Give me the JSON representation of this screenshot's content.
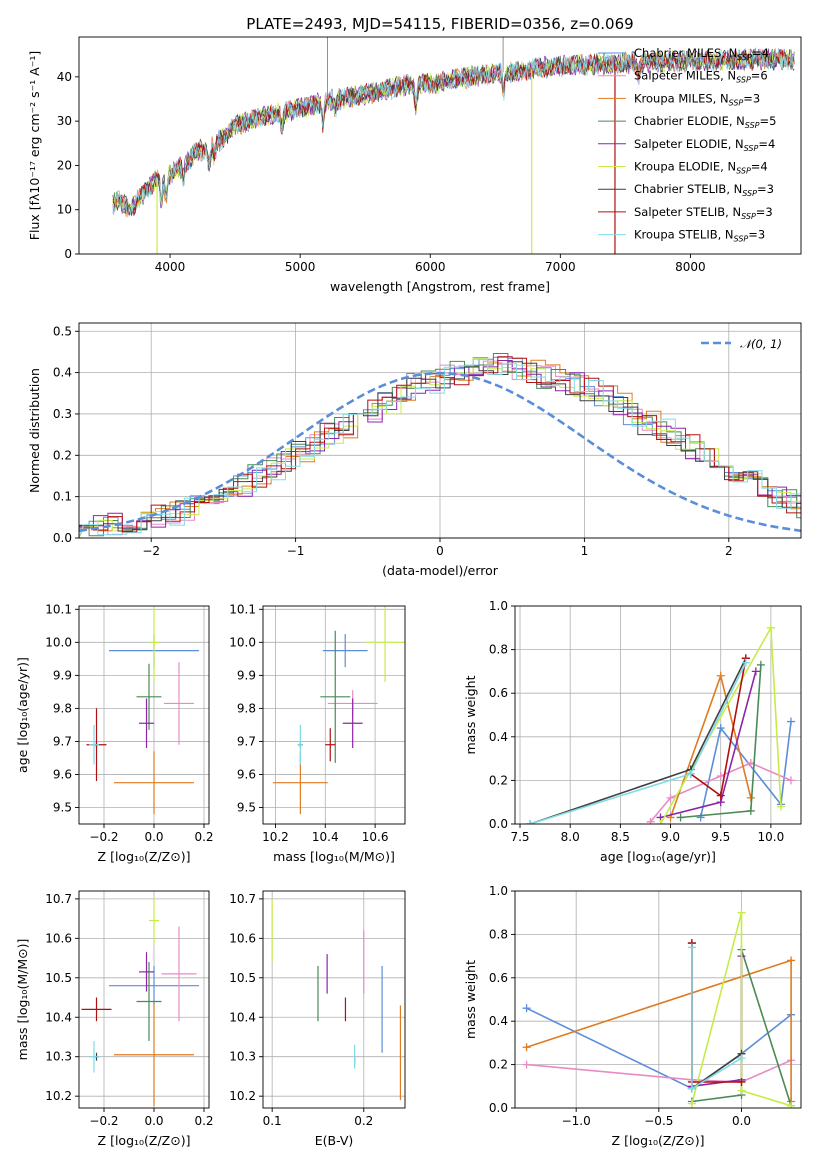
{
  "colors": {
    "Chabrier MILES": "#5b8ed8",
    "Salpeter MILES": "#e88bc4",
    "Kroupa MILES": "#e07b20",
    "Chabrier ELODIE": "#4a8a55",
    "Salpeter ELODIE": "#8e24aa",
    "Kroupa ELODIE": "#c6ec4a",
    "Chabrier STELIB": "#404040",
    "Salpeter STELIB": "#b01010",
    "Kroupa STELIB": "#80dbe8",
    "gaussian": "#5b8ed8"
  },
  "chart_data": [
    {
      "id": "spectrum",
      "type": "line",
      "title": "PLATE=2493, MJD=54115, FIBERID=0356, z=0.069",
      "xlabel": "wavelength [Angstrom, rest frame]",
      "ylabel": "Flux [fλ10⁻¹⁷ erg cm⁻² s⁻¹ A⁻¹]",
      "xlim": [
        3300,
        8850
      ],
      "ylim": [
        0,
        49
      ],
      "xticks": [
        4000,
        5000,
        6000,
        7000,
        8000
      ],
      "yticks": [
        0,
        10,
        20,
        30,
        40
      ],
      "grid": false,
      "legend_position": "right",
      "continuum": [
        [
          3550,
          11
        ],
        [
          3600,
          12
        ],
        [
          3700,
          10
        ],
        [
          3800,
          14
        ],
        [
          3900,
          17
        ],
        [
          4000,
          18
        ],
        [
          4100,
          20
        ],
        [
          4200,
          23
        ],
        [
          4300,
          24
        ],
        [
          4400,
          26
        ],
        [
          4500,
          29
        ],
        [
          4600,
          30
        ],
        [
          4700,
          31
        ],
        [
          4800,
          31.5
        ],
        [
          5000,
          33
        ],
        [
          5200,
          34.5
        ],
        [
          5500,
          36
        ],
        [
          5800,
          38
        ],
        [
          6000,
          38.5
        ],
        [
          6300,
          40
        ],
        [
          6600,
          41
        ],
        [
          7000,
          42.5
        ],
        [
          7400,
          43
        ],
        [
          7800,
          43.5
        ],
        [
          8200,
          43.5
        ],
        [
          8500,
          44
        ],
        [
          8850,
          44
        ]
      ],
      "series": [
        {
          "name": "Chabrier MILES",
          "label_main": "Chabrier MILES, N",
          "label_sub": "SSP",
          "label_tail": "=4"
        },
        {
          "name": "Salpeter MILES",
          "label_main": "Salpeter MILES, N",
          "label_sub": "SSP",
          "label_tail": "=6"
        },
        {
          "name": "Kroupa MILES",
          "label_main": "Kroupa MILES, N",
          "label_sub": "SSP",
          "label_tail": "=3"
        },
        {
          "name": "Chabrier ELODIE",
          "label_main": "Chabrier ELODIE, N",
          "label_sub": "SSP",
          "label_tail": "=5"
        },
        {
          "name": "Salpeter ELODIE",
          "label_main": "Salpeter ELODIE, N",
          "label_sub": "SSP",
          "label_tail": "=4"
        },
        {
          "name": "Kroupa ELODIE",
          "label_main": "Kroupa ELODIE, N",
          "label_sub": "SSP",
          "label_tail": "=4"
        },
        {
          "name": "Chabrier STELIB",
          "label_main": "Chabrier STELIB, N",
          "label_sub": "SSP",
          "label_tail": "=3"
        },
        {
          "name": "Salpeter STELIB",
          "label_main": "Salpeter STELIB, N",
          "label_sub": "SSP",
          "label_tail": "=3"
        },
        {
          "name": "Kroupa STELIB",
          "label_main": "Kroupa STELIB, N",
          "label_sub": "SSP",
          "label_tail": "=3"
        }
      ]
    },
    {
      "id": "residuals",
      "type": "histogram",
      "xlabel": "(data-model)/error",
      "ylabel": "Normed distribution",
      "xlim": [
        -2.5,
        2.5
      ],
      "ylim": [
        0,
        0.52
      ],
      "xticks": [
        -2,
        -1,
        0,
        1,
        2
      ],
      "yticks": [
        0.0,
        0.1,
        0.2,
        0.3,
        0.4,
        0.5
      ],
      "grid": true,
      "legend": "𝒩(0, 1)",
      "legend_position": "top-right",
      "bin_width": 0.1,
      "base_histogram": [
        0.02,
        0.025,
        0.03,
        0.035,
        0.04,
        0.05,
        0.06,
        0.07,
        0.085,
        0.1,
        0.11,
        0.13,
        0.15,
        0.17,
        0.19,
        0.21,
        0.23,
        0.25,
        0.27,
        0.29,
        0.31,
        0.33,
        0.35,
        0.37,
        0.38,
        0.39,
        0.4,
        0.41,
        0.42,
        0.42,
        0.41,
        0.4,
        0.39,
        0.38,
        0.37,
        0.36,
        0.34,
        0.32,
        0.3,
        0.28,
        0.26,
        0.24,
        0.22,
        0.2,
        0.18,
        0.16,
        0.14,
        0.12,
        0.1,
        0.09,
        0.07,
        0.06,
        0.05,
        0.045,
        0.04,
        0.035,
        0.03,
        0.028,
        0.025,
        0.022
      ]
    },
    {
      "id": "age-vs-Z",
      "type": "errorbar",
      "xlabel": "Z [log₁₀(Z/Z⊙)]",
      "ylabel": "age  [log₁₀(age/yr)]",
      "xlim": [
        -0.3,
        0.22
      ],
      "ylim": [
        9.45,
        10.11
      ],
      "xticks": [
        -0.2,
        0.0,
        0.2
      ],
      "yticks": [
        9.5,
        9.6,
        9.7,
        9.8,
        9.9,
        10.0,
        10.1
      ],
      "grid": true,
      "points": [
        {
          "name": "Chabrier MILES",
          "x": 0.0,
          "y": 9.975,
          "xerr": 0.18,
          "yerr": 0.05
        },
        {
          "name": "Salpeter MILES",
          "x": 0.1,
          "y": 9.815,
          "xerr": 0.06,
          "yerr": 0.125
        },
        {
          "name": "Kroupa MILES",
          "x": 0.0,
          "y": 9.575,
          "xerr": 0.16,
          "yerr": 0.095
        },
        {
          "name": "Chabrier ELODIE",
          "x": -0.02,
          "y": 9.835,
          "xerr": 0.05,
          "yerr": 0.1
        },
        {
          "name": "Salpeter ELODIE",
          "x": -0.03,
          "y": 9.755,
          "xerr": 0.03,
          "yerr": 0.075
        },
        {
          "name": "Kroupa ELODIE",
          "x": 0.0,
          "y": 10.0,
          "xerr": 0.02,
          "yerr": 0.12
        },
        {
          "name": "Chabrier STELIB",
          "x": -0.23,
          "y": 9.69,
          "xerr": 0.01,
          "yerr": 0.01
        },
        {
          "name": "Salpeter STELIB",
          "x": -0.23,
          "y": 9.69,
          "xerr": 0.04,
          "yerr": 0.11
        },
        {
          "name": "Kroupa STELIB",
          "x": -0.24,
          "y": 9.69,
          "xerr": 0.02,
          "yerr": 0.06
        }
      ]
    },
    {
      "id": "age-vs-mass",
      "type": "errorbar",
      "xlabel": "mass [log₁₀(M/M⊙)]",
      "ylabel": "",
      "xlim": [
        10.15,
        10.72
      ],
      "ylim": [
        9.45,
        10.11
      ],
      "xticks": [
        10.2,
        10.4,
        10.6
      ],
      "yticks": [
        9.5,
        9.6,
        9.7,
        9.8,
        9.9,
        10.0,
        10.1
      ],
      "grid": true,
      "points": [
        {
          "name": "Chabrier MILES",
          "x": 10.48,
          "y": 9.975,
          "xerr": 0.09,
          "yerr": 0.05
        },
        {
          "name": "Salpeter MILES",
          "x": 10.51,
          "y": 9.815,
          "xerr": 0.1,
          "yerr": 0.04
        },
        {
          "name": "Kroupa MILES",
          "x": 10.3,
          "y": 9.575,
          "xerr": 0.11,
          "yerr": 0.095
        },
        {
          "name": "Chabrier ELODIE",
          "x": 10.44,
          "y": 9.835,
          "xerr": 0.06,
          "yerr": 0.2
        },
        {
          "name": "Salpeter ELODIE",
          "x": 10.51,
          "y": 9.755,
          "xerr": 0.04,
          "yerr": 0.075
        },
        {
          "name": "Kroupa ELODIE",
          "x": 10.64,
          "y": 10.0,
          "xerr": 0.08,
          "yerr": 0.12
        },
        {
          "name": "Chabrier STELIB",
          "x": 10.3,
          "y": 9.69,
          "xerr": 0.01,
          "yerr": 0.01
        },
        {
          "name": "Salpeter STELIB",
          "x": 10.42,
          "y": 9.69,
          "xerr": 0.02,
          "yerr": 0.05
        },
        {
          "name": "Kroupa STELIB",
          "x": 10.3,
          "y": 9.69,
          "xerr": 0.01,
          "yerr": 0.06
        }
      ]
    },
    {
      "id": "weight-vs-age",
      "type": "line",
      "xlabel": "age  [log₁₀(age/yr)]",
      "ylabel": "mass weight",
      "xlim": [
        7.45,
        10.3
      ],
      "ylim": [
        0,
        1.0
      ],
      "xticks": [
        7.5,
        8.0,
        8.5,
        9.0,
        9.5,
        10.0
      ],
      "yticks": [
        0.0,
        0.2,
        0.4,
        0.6,
        0.8,
        1.0
      ],
      "grid": true,
      "series": [
        {
          "name": "Chabrier MILES",
          "x": [
            9.3,
            9.5,
            10.1,
            10.2
          ],
          "y": [
            0.03,
            0.44,
            0.09,
            0.47
          ]
        },
        {
          "name": "Salpeter MILES",
          "x": [
            8.8,
            9.0,
            9.5,
            9.8,
            10.2
          ],
          "y": [
            0.01,
            0.12,
            0.22,
            0.28,
            0.2
          ]
        },
        {
          "name": "Kroupa MILES",
          "x": [
            9.0,
            9.5,
            9.8
          ],
          "y": [
            0.03,
            0.68,
            0.12
          ]
        },
        {
          "name": "Chabrier ELODIE",
          "x": [
            9.1,
            9.8,
            9.9
          ],
          "y": [
            0.03,
            0.06,
            0.73
          ]
        },
        {
          "name": "Salpeter ELODIE",
          "x": [
            8.9,
            9.5,
            9.85
          ],
          "y": [
            0.03,
            0.1,
            0.7
          ]
        },
        {
          "name": "Kroupa ELODIE",
          "x": [
            8.9,
            10.0,
            10.1
          ],
          "y": [
            0.0,
            0.9,
            0.08
          ]
        },
        {
          "name": "Chabrier STELIB",
          "x": [
            7.6,
            9.2,
            9.75
          ],
          "y": [
            0.0,
            0.25,
            0.76
          ]
        },
        {
          "name": "Salpeter STELIB",
          "x": [
            9.2,
            9.5,
            9.75
          ],
          "y": [
            0.23,
            0.13,
            0.76
          ]
        },
        {
          "name": "Kroupa STELIB",
          "x": [
            7.6,
            9.2,
            9.75
          ],
          "y": [
            0.0,
            0.23,
            0.74
          ]
        }
      ]
    },
    {
      "id": "mass-vs-Z",
      "type": "errorbar",
      "xlabel": "Z [log₁₀(Z/Z⊙)]",
      "ylabel": "mass [log₁₀(M/M⊙)]",
      "xlim": [
        -0.3,
        0.22
      ],
      "ylim": [
        10.17,
        10.72
      ],
      "xticks": [
        -0.2,
        0.0,
        0.2
      ],
      "yticks": [
        10.2,
        10.3,
        10.4,
        10.5,
        10.6,
        10.7
      ],
      "grid": true,
      "points": [
        {
          "name": "Chabrier MILES",
          "x": 0.0,
          "y": 10.48,
          "xerr": 0.18,
          "yerr": 0.05
        },
        {
          "name": "Salpeter MILES",
          "x": 0.1,
          "y": 10.51,
          "xerr": 0.07,
          "yerr": 0.12
        },
        {
          "name": "Kroupa MILES",
          "x": 0.0,
          "y": 10.305,
          "xerr": 0.16,
          "yerr": 0.13
        },
        {
          "name": "Chabrier ELODIE",
          "x": -0.02,
          "y": 10.44,
          "xerr": 0.05,
          "yerr": 0.1
        },
        {
          "name": "Salpeter ELODIE",
          "x": -0.03,
          "y": 10.515,
          "xerr": 0.03,
          "yerr": 0.05
        },
        {
          "name": "Kroupa ELODIE",
          "x": 0.0,
          "y": 10.645,
          "xerr": 0.02,
          "yerr": 0.06
        },
        {
          "name": "Chabrier STELIB",
          "x": -0.23,
          "y": 10.3,
          "xerr": 0.01,
          "yerr": 0.01
        },
        {
          "name": "Salpeter STELIB",
          "x": -0.23,
          "y": 10.42,
          "xerr": 0.06,
          "yerr": 0.03
        },
        {
          "name": "Kroupa STELIB",
          "x": -0.24,
          "y": 10.3,
          "xerr": 0.02,
          "yerr": 0.04
        }
      ]
    },
    {
      "id": "mass-vs-EBV",
      "type": "errorbar",
      "xlabel": "E(B-V)",
      "ylabel": "",
      "xlim": [
        0.09,
        0.245
      ],
      "ylim": [
        10.17,
        10.72
      ],
      "xticks": [
        0.1,
        0.2
      ],
      "yticks": [
        10.2,
        10.3,
        10.4,
        10.5,
        10.6,
        10.7
      ],
      "grid": true,
      "points": [
        {
          "name": "Chabrier MILES",
          "x": 0.22,
          "y": 10.42,
          "xerr": 0.0,
          "yerr": 0.11
        },
        {
          "name": "Salpeter MILES",
          "x": 0.2,
          "y": 10.54,
          "xerr": 0.0,
          "yerr": 0.08
        },
        {
          "name": "Kroupa MILES",
          "x": 0.24,
          "y": 10.31,
          "xerr": 0.0,
          "yerr": 0.12
        },
        {
          "name": "Chabrier ELODIE",
          "x": 0.15,
          "y": 10.46,
          "xerr": 0.0,
          "yerr": 0.07
        },
        {
          "name": "Salpeter ELODIE",
          "x": 0.16,
          "y": 10.51,
          "xerr": 0.0,
          "yerr": 0.05
        },
        {
          "name": "Kroupa ELODIE",
          "x": 0.1,
          "y": 10.62,
          "xerr": 0.0,
          "yerr": 0.08
        },
        {
          "name": "Chabrier STELIB",
          "x": 0.19,
          "y": 10.29,
          "xerr": 0.0,
          "yerr": 0.01
        },
        {
          "name": "Salpeter STELIB",
          "x": 0.18,
          "y": 10.42,
          "xerr": 0.0,
          "yerr": 0.03
        },
        {
          "name": "Kroupa STELIB",
          "x": 0.19,
          "y": 10.3,
          "xerr": 0.0,
          "yerr": 0.03
        }
      ]
    },
    {
      "id": "weight-vs-Z",
      "type": "line",
      "xlabel": "Z [log₁₀(Z/Z⊙)]",
      "ylabel": "mass weight",
      "xlim": [
        -1.37,
        0.36
      ],
      "ylim": [
        0,
        1.0
      ],
      "xticks": [
        -1.0,
        -0.5,
        0.0
      ],
      "yticks": [
        0.0,
        0.2,
        0.4,
        0.6,
        0.8,
        1.0
      ],
      "grid": true,
      "series": [
        {
          "name": "Chabrier MILES",
          "x": [
            -1.3,
            -0.3,
            0.0,
            0.3
          ],
          "y": [
            0.46,
            0.09,
            0.25,
            0.43
          ]
        },
        {
          "name": "Salpeter MILES",
          "x": [
            -1.3,
            -0.3,
            0.0,
            0.3
          ],
          "y": [
            0.2,
            0.13,
            0.12,
            0.22
          ]
        },
        {
          "name": "Kroupa MILES",
          "x": [
            -1.3,
            0.3,
            0.3
          ],
          "y": [
            0.28,
            0.68,
            0.03
          ]
        },
        {
          "name": "Chabrier ELODIE",
          "x": [
            -0.3,
            0.0,
            0.0,
            0.3
          ],
          "y": [
            0.03,
            0.06,
            0.73,
            0.01
          ]
        },
        {
          "name": "Salpeter ELODIE",
          "x": [
            -0.3,
            0.0,
            0.0
          ],
          "y": [
            0.1,
            0.13,
            0.7
          ]
        },
        {
          "name": "Kroupa ELODIE",
          "x": [
            -0.3,
            0.0,
            0.0,
            0.3
          ],
          "y": [
            0.02,
            0.9,
            0.08,
            0.01
          ]
        },
        {
          "name": "Chabrier STELIB",
          "x": [
            -0.3,
            -0.3,
            0.0
          ],
          "y": [
            0.76,
            0.09,
            0.25
          ]
        },
        {
          "name": "Salpeter STELIB",
          "x": [
            -0.3,
            -0.3,
            0.0
          ],
          "y": [
            0.76,
            0.12,
            0.12
          ]
        },
        {
          "name": "Kroupa STELIB",
          "x": [
            -0.3,
            -0.3,
            0.0
          ],
          "y": [
            0.74,
            0.09,
            0.23
          ]
        }
      ]
    }
  ]
}
